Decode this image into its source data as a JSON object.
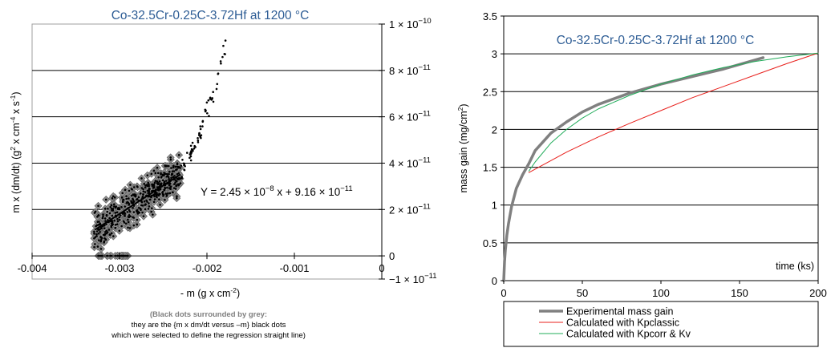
{
  "chart_data": [
    {
      "type": "scatter",
      "title": "Co-32.5Cr-0.25C-3.72Hf at 1200 °C",
      "xlabel": "- m (g x cm-2)",
      "ylabel": "m x (dm/dt)  (g2 x cm-4 x s-1)",
      "xlim": [
        -0.004,
        0
      ],
      "ylim": [
        -1e-11,
        1e-10
      ],
      "x_ticks": [
        -0.004,
        -0.003,
        -0.002,
        -0.001,
        0
      ],
      "x_tick_labels": [
        "-0.004",
        "-0.003",
        "-0.002",
        "-0.001",
        "0"
      ],
      "y_ticks": [
        1e-10,
        8e-11,
        6e-11,
        4e-11,
        2e-11,
        0,
        -1e-11
      ],
      "y_tick_labels": [
        {
          "m": "1 × 10",
          "e": "−10"
        },
        {
          "m": "8 × 10",
          "e": "−11"
        },
        {
          "m": "6 × 10",
          "e": "−11"
        },
        {
          "m": "4 × 10",
          "e": "−11"
        },
        {
          "m": "2 × 10",
          "e": "−11"
        },
        {
          "m": "0",
          "e": ""
        },
        {
          "m": "−1 × 10",
          "e": "−11"
        }
      ],
      "grid": "horizontal",
      "regression": {
        "slope": 2.45e-08,
        "intercept": 9.16e-11,
        "x_range": [
          -0.00328,
          -0.00232
        ],
        "label": {
          "p1": "Y = 2.45 × 10",
          "e1": "−8",
          "p2": " x + 9.16 × 10",
          "e2": "−11"
        }
      },
      "selected_points_style": "black dots surrounded by grey",
      "note": {
        "head": "(Black dots surrounded by grey:",
        "line2": "they are the {m x dm/dt versus –m} black dots",
        "line3": "which were selected to define the regression straight line)"
      }
    },
    {
      "type": "line",
      "title": "Co-32.5Cr-0.25C-3.72Hf at 1200 °C",
      "xlabel": "time (ks)",
      "ylabel": "mass gain (mg/cm2)",
      "xlim": [
        0,
        200
      ],
      "ylim": [
        0,
        3.5
      ],
      "x_ticks": [
        0,
        50,
        100,
        150,
        200
      ],
      "y_ticks": [
        0,
        0.5,
        1,
        1.5,
        2,
        2.5,
        3,
        3.5
      ],
      "y_tick_labels": [
        "0",
        "0.5",
        "1",
        "1.5",
        "2",
        "2.5",
        "3",
        "3.5"
      ],
      "grid": "horizontal",
      "legend_position": "bottom",
      "series": [
        {
          "name": "Experimental mass gain",
          "color": "#808080",
          "x": [
            0,
            0.5,
            1,
            2,
            3,
            5,
            8,
            12,
            16,
            20,
            30,
            40,
            50,
            60,
            80,
            100,
            120,
            140,
            165
          ],
          "y": [
            0,
            0.25,
            0.4,
            0.6,
            0.75,
            0.98,
            1.22,
            1.4,
            1.55,
            1.72,
            1.95,
            2.1,
            2.23,
            2.33,
            2.48,
            2.6,
            2.7,
            2.8,
            2.95
          ]
        },
        {
          "name": "Calculated with Kpclassic",
          "color": "#e8201c",
          "x": [
            16,
            40,
            60,
            80,
            100,
            120,
            140,
            160,
            180,
            200
          ],
          "y": [
            1.43,
            1.7,
            1.9,
            2.08,
            2.25,
            2.42,
            2.57,
            2.72,
            2.87,
            3.01
          ]
        },
        {
          "name": "Calculated with Kpcorr & Kv",
          "color": "#21ac5a",
          "x": [
            16,
            20,
            30,
            40,
            50,
            60,
            80,
            100,
            120,
            140,
            160,
            180,
            200
          ],
          "y": [
            1.45,
            1.57,
            1.82,
            2.0,
            2.15,
            2.27,
            2.45,
            2.6,
            2.72,
            2.82,
            2.9,
            2.96,
            3.01
          ]
        }
      ]
    }
  ]
}
